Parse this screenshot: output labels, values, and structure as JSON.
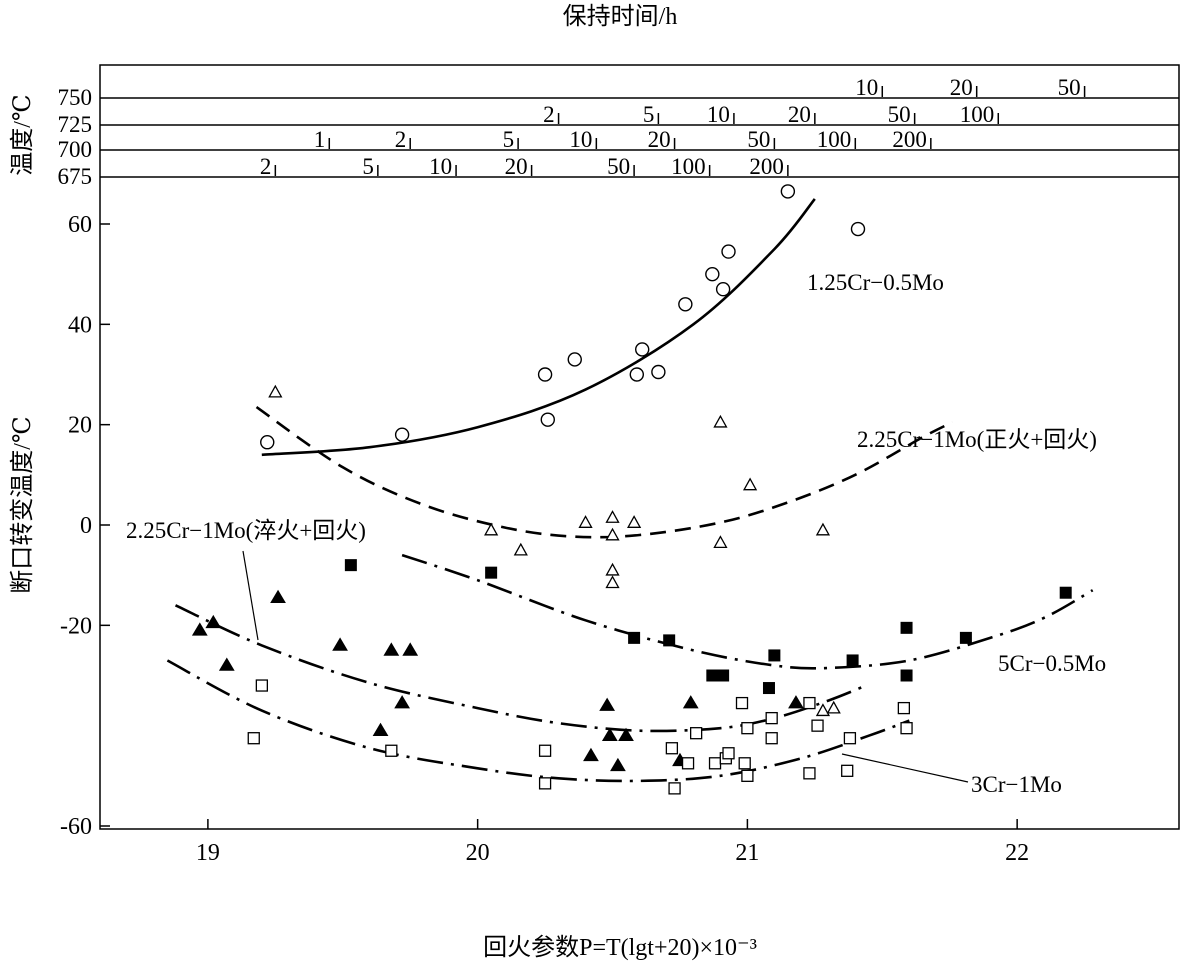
{
  "chart_data": {
    "type": "scatter",
    "title_top": "保持时间/h",
    "xlabel": "回火参数P=T(lgt+20)×10⁻³",
    "ylabel": "断口转变温度/℃",
    "nomogram_ylabel": "温度/℃",
    "xlim": [
      18.6,
      22.6
    ],
    "ylim": [
      -60,
      70
    ],
    "xticks": [
      "19",
      "20",
      "21",
      "22"
    ],
    "yticks": [
      "60",
      "40",
      "20",
      "0",
      "-20",
      "-60"
    ],
    "ytick_values": [
      60,
      40,
      20,
      0,
      -20,
      -60
    ],
    "nomogram": [
      {
        "temp": "750",
        "ticks": [
          {
            "label": "10",
            "p": 21.5
          },
          {
            "label": "20",
            "p": 21.85
          },
          {
            "label": "50",
            "p": 22.25
          }
        ]
      },
      {
        "temp": "725",
        "ticks": [
          {
            "label": "2",
            "p": 20.3
          },
          {
            "label": "5",
            "p": 20.67
          },
          {
            "label": "10",
            "p": 20.95
          },
          {
            "label": "20",
            "p": 21.25
          },
          {
            "label": "50",
            "p": 21.62
          },
          {
            "label": "100",
            "p": 21.93
          }
        ]
      },
      {
        "temp": "700",
        "ticks": [
          {
            "label": "1",
            "p": 19.45
          },
          {
            "label": "2",
            "p": 19.75
          },
          {
            "label": "5",
            "p": 20.15
          },
          {
            "label": "10",
            "p": 20.44
          },
          {
            "label": "20",
            "p": 20.73
          },
          {
            "label": "50",
            "p": 21.1
          },
          {
            "label": "100",
            "p": 21.4
          },
          {
            "label": "200",
            "p": 21.68
          }
        ]
      },
      {
        "temp": "675",
        "ticks": [
          {
            "label": "2",
            "p": 19.25
          },
          {
            "label": "5",
            "p": 19.63
          },
          {
            "label": "10",
            "p": 19.92
          },
          {
            "label": "20",
            "p": 20.2
          },
          {
            "label": "50",
            "p": 20.58
          },
          {
            "label": "100",
            "p": 20.86
          },
          {
            "label": "200",
            "p": 21.15
          }
        ]
      }
    ],
    "series": [
      {
        "name": "1.25Cr−0.5Mo",
        "marker": "open-circle",
        "curve_style": "solid",
        "points": [
          [
            19.22,
            16.5
          ],
          [
            19.72,
            18
          ],
          [
            20.25,
            30
          ],
          [
            20.26,
            21
          ],
          [
            20.36,
            33
          ],
          [
            20.59,
            30
          ],
          [
            20.61,
            35
          ],
          [
            20.67,
            30.5
          ],
          [
            20.77,
            44
          ],
          [
            20.87,
            50
          ],
          [
            20.91,
            47
          ],
          [
            20.93,
            54.5
          ],
          [
            21.15,
            66.5
          ],
          [
            21.41,
            59
          ]
        ],
        "curve": [
          [
            19.2,
            14
          ],
          [
            19.6,
            15.5
          ],
          [
            20,
            19.5
          ],
          [
            20.4,
            27
          ],
          [
            20.8,
            40
          ],
          [
            21.1,
            55
          ],
          [
            21.25,
            65
          ]
        ]
      },
      {
        "name": "2.25Cr−1Mo(正火+回火)",
        "marker": "open-triangle",
        "curve_style": "dashed",
        "points": [
          [
            19.25,
            26.5
          ],
          [
            20.05,
            -1
          ],
          [
            20.16,
            -5
          ],
          [
            20.4,
            0.5
          ],
          [
            20.5,
            1.5
          ],
          [
            20.5,
            -2
          ],
          [
            20.58,
            0.5
          ],
          [
            20.5,
            -9
          ],
          [
            20.5,
            -11.5
          ],
          [
            20.9,
            20.5
          ],
          [
            20.9,
            -3.5
          ],
          [
            21.01,
            8
          ],
          [
            21.28,
            -1
          ],
          [
            21.28,
            -37
          ],
          [
            21.32,
            -36.5
          ]
        ],
        "curve": [
          [
            19.18,
            23.5
          ],
          [
            19.5,
            11.5
          ],
          [
            19.8,
            4
          ],
          [
            20.1,
            -0.5
          ],
          [
            20.35,
            -2.3
          ],
          [
            20.6,
            -2
          ],
          [
            20.9,
            0.5
          ],
          [
            21.15,
            4.5
          ],
          [
            21.4,
            10
          ],
          [
            21.65,
            17.5
          ],
          [
            21.76,
            20.5
          ]
        ]
      },
      {
        "name": "5Cr−0.5Mo",
        "marker": "filled-square",
        "curve_style": "dash-dot",
        "points": [
          [
            19.53,
            -8
          ],
          [
            20.05,
            -9.5
          ],
          [
            20.58,
            -22.5
          ],
          [
            20.71,
            -23
          ],
          [
            20.87,
            -30
          ],
          [
            20.91,
            -30
          ],
          [
            21.08,
            -32.5
          ],
          [
            21.1,
            -26
          ],
          [
            21.39,
            -27
          ],
          [
            21.59,
            -20.5
          ],
          [
            21.59,
            -30
          ],
          [
            21.81,
            -22.5
          ],
          [
            22.18,
            -13.5
          ]
        ],
        "curve": [
          [
            19.72,
            -6
          ],
          [
            20,
            -11
          ],
          [
            20.4,
            -19
          ],
          [
            20.8,
            -25
          ],
          [
            21.1,
            -28
          ],
          [
            21.3,
            -28.5
          ],
          [
            21.6,
            -27
          ],
          [
            21.9,
            -22.5
          ],
          [
            22.1,
            -18.5
          ],
          [
            22.28,
            -13
          ]
        ]
      },
      {
        "name": "2.25Cr−1Mo(淬火+回火)",
        "marker": "filled-triangle",
        "curve_style": "dash-dot",
        "points": [
          [
            18.97,
            -21
          ],
          [
            19.02,
            -19.5
          ],
          [
            19.07,
            -28
          ],
          [
            19.26,
            -14.5
          ],
          [
            19.49,
            -24
          ],
          [
            19.64,
            -41
          ],
          [
            19.68,
            -25
          ],
          [
            19.72,
            -35.5
          ],
          [
            19.75,
            -25
          ],
          [
            20.42,
            -46
          ],
          [
            20.48,
            -36
          ],
          [
            20.49,
            -42
          ],
          [
            20.52,
            -48
          ],
          [
            20.55,
            -42
          ],
          [
            20.75,
            -47
          ],
          [
            20.79,
            -35.5
          ],
          [
            21.18,
            -35.5
          ]
        ],
        "curve": [
          [
            18.88,
            -16
          ],
          [
            19.2,
            -24
          ],
          [
            19.6,
            -31.5
          ],
          [
            20,
            -36.5
          ],
          [
            20.3,
            -39.5
          ],
          [
            20.6,
            -41
          ],
          [
            20.9,
            -40.5
          ],
          [
            21.1,
            -38.5
          ],
          [
            21.3,
            -35
          ],
          [
            21.44,
            -32
          ]
        ]
      },
      {
        "name": "3Cr−1Mo",
        "marker": "open-square",
        "curve_style": "dash-dot",
        "points": [
          [
            19.17,
            -42.5
          ],
          [
            19.2,
            -32
          ],
          [
            19.68,
            -45
          ],
          [
            20.25,
            -45
          ],
          [
            20.25,
            -51.5
          ],
          [
            20.72,
            -44.5
          ],
          [
            20.73,
            -52.5
          ],
          [
            20.78,
            -47.5
          ],
          [
            20.81,
            -41.5
          ],
          [
            20.88,
            -47.5
          ],
          [
            20.92,
            -46.5
          ],
          [
            20.93,
            -45.5
          ],
          [
            20.98,
            -35.5
          ],
          [
            20.99,
            -47.5
          ],
          [
            21,
            -50
          ],
          [
            21,
            -40.5
          ],
          [
            21.09,
            -38.5
          ],
          [
            21.09,
            -42.5
          ],
          [
            21.23,
            -35.5
          ],
          [
            21.23,
            -49.5
          ],
          [
            21.26,
            -40
          ],
          [
            21.37,
            -49
          ],
          [
            21.38,
            -42.5
          ],
          [
            21.58,
            -36.5
          ],
          [
            21.59,
            -40.5
          ]
        ],
        "curve": [
          [
            18.85,
            -27
          ],
          [
            19.2,
            -37
          ],
          [
            19.6,
            -44.5
          ],
          [
            20,
            -48.5
          ],
          [
            20.3,
            -50.5
          ],
          [
            20.6,
            -51
          ],
          [
            20.9,
            -50
          ],
          [
            21.2,
            -46.5
          ],
          [
            21.45,
            -42
          ],
          [
            21.6,
            -39
          ]
        ]
      }
    ],
    "annotations": [
      {
        "text": "1.25Cr−0.5Mo"
      },
      {
        "text": "2.25Cr−1Mo(正火+回火)"
      },
      {
        "text": "2.25Cr−1Mo(淬火+回火)"
      },
      {
        "text": "5Cr−0.5Mo"
      },
      {
        "text": "3Cr−1Mo"
      }
    ]
  }
}
